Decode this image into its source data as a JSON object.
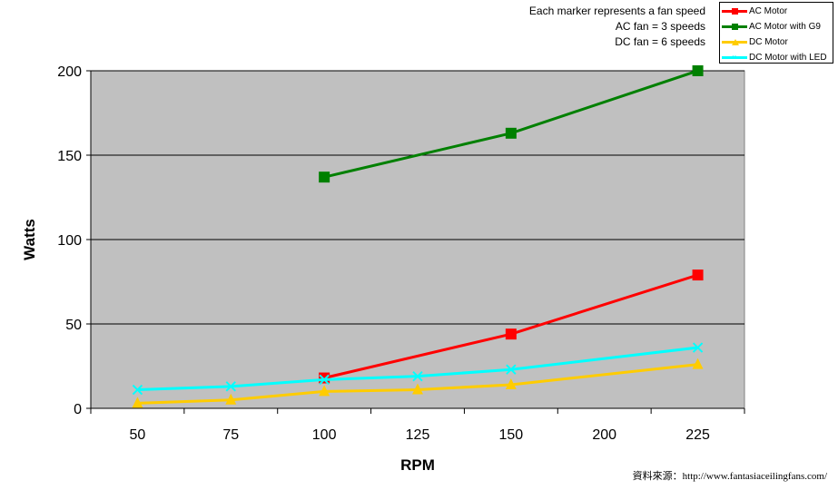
{
  "chart_data": {
    "type": "line",
    "categories": [
      "50",
      "75",
      "100",
      "125",
      "150",
      "200",
      "225"
    ],
    "xlabel": "RPM",
    "ylabel": "Watts",
    "ylim": [
      0,
      200
    ],
    "yticks": [
      "0",
      "50",
      "100",
      "150",
      "200"
    ],
    "grid": true,
    "legend_position": "top-right",
    "notes": [
      "Each marker represents a fan speed",
      "AC fan = 3 speeds",
      "DC fan = 6 speeds"
    ],
    "source": "資料來源：http://www.fantasiaceilingfans.com/",
    "series": [
      {
        "name": "AC Motor",
        "color": "#ff0000",
        "marker": "square",
        "x": [
          "100",
          "150",
          "225"
        ],
        "values": [
          18,
          44,
          79
        ]
      },
      {
        "name": "AC Motor with G9",
        "color": "#008000",
        "marker": "square",
        "x": [
          "100",
          "150",
          "225"
        ],
        "values": [
          137,
          163,
          200
        ]
      },
      {
        "name": "DC Motor",
        "color": "#ffcc00",
        "marker": "triangle",
        "x": [
          "50",
          "75",
          "100",
          "125",
          "150",
          "225"
        ],
        "values": [
          3,
          5,
          10,
          11,
          14,
          26
        ]
      },
      {
        "name": "DC Motor with LED",
        "color": "#00ffff",
        "marker": "x",
        "x": [
          "50",
          "75",
          "100",
          "125",
          "150",
          "225"
        ],
        "values": [
          11,
          13,
          17,
          19,
          23,
          36
        ]
      }
    ]
  }
}
